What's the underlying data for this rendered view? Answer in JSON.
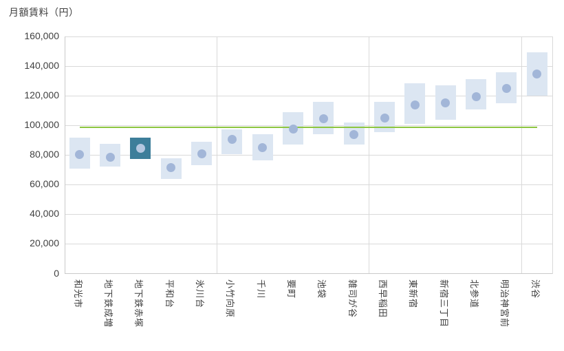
{
  "title": "月額賃料（円）",
  "chart_data": {
    "type": "range-dot",
    "title": "月額賃料（円）",
    "ylabel": "月額賃料（円）",
    "xlabel": "",
    "ylim": [
      0,
      160000
    ],
    "y_tick_step": 20000,
    "y_tick_labels": [
      "0",
      "20,000",
      "40,000",
      "60,000",
      "80,000",
      "100,000",
      "120,000",
      "140,000",
      "160,000"
    ],
    "grid": "on",
    "legend": "none",
    "categories": [
      "和光市",
      "地下鉄成増",
      "地下鉄赤塚",
      "平和台",
      "氷川台",
      "小竹向原",
      "千川",
      "要町",
      "池袋",
      "雑司が谷",
      "西早稲田",
      "東新宿",
      "新宿三丁目",
      "北参道",
      "明治神宮前",
      "渋谷"
    ],
    "series": [
      {
        "name": "rent-range-low",
        "type": "range-low",
        "values": [
          71000,
          72000,
          77500,
          64000,
          73000,
          80500,
          76500,
          87000,
          94000,
          87000,
          95500,
          101000,
          104000,
          111000,
          115000,
          120000
        ]
      },
      {
        "name": "rent-range-high",
        "type": "range-high",
        "values": [
          91500,
          87500,
          91500,
          78000,
          89000,
          97500,
          94000,
          109000,
          116000,
          102000,
          116000,
          128500,
          127000,
          131000,
          136000,
          149500
        ]
      },
      {
        "name": "rent-average-dot",
        "type": "dot",
        "values": [
          80500,
          78500,
          84500,
          71500,
          81000,
          90500,
          85000,
          97500,
          104500,
          94000,
          105000,
          114000,
          115000,
          119500,
          125000,
          134500
        ]
      }
    ],
    "reference_line": {
      "value": 98800
    },
    "highlight_index": 2,
    "group_dividers_after": [
      4,
      9,
      14
    ],
    "colors": {
      "box": "#dce6f2",
      "dot": "#a2b6d8",
      "highlight_box": "#3d7e9a",
      "highlight_dot": "#b4c7e0",
      "reference_line": "#8cc63f",
      "gridline": "#d9d9d9",
      "axis": "#c9c9c9",
      "text": "#404040"
    }
  }
}
